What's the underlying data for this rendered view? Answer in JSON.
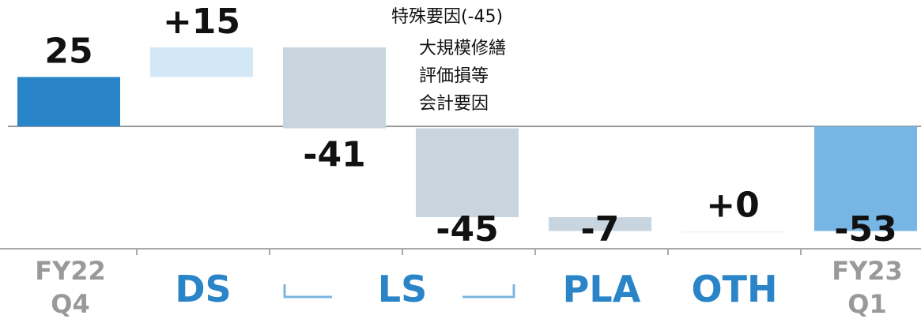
{
  "chart_data": {
    "type": "waterfall",
    "categories": [
      "FY22 Q4",
      "DS",
      "LS",
      null,
      "PLA",
      "OTH",
      "FY23 Q1"
    ],
    "values": [
      25,
      15,
      -41,
      -45,
      -7,
      0,
      -53
    ],
    "value_labels": [
      "25",
      "+15",
      "-41",
      "-45",
      "-7",
      "+0",
      "-53"
    ],
    "measure": [
      "absolute",
      "relative",
      "relative",
      "relative",
      "relative",
      "relative",
      "total"
    ],
    "colors": [
      "#2a84c8",
      "#d3e7f6",
      "#c8d5df",
      "#c8d5df",
      "#c8d5df",
      "#f4f4f4",
      "#76b5e4"
    ],
    "category_colors": [
      "#999999",
      "#2a84c8",
      "#2a84c8",
      null,
      "#2a84c8",
      "#2a84c8",
      "#999999"
    ],
    "annotation": {
      "title": "特殊要因(-45)",
      "lines": [
        "大規模修繕",
        "評価損等",
        "会計要因"
      ]
    },
    "ylim": [
      -62,
      64
    ]
  }
}
